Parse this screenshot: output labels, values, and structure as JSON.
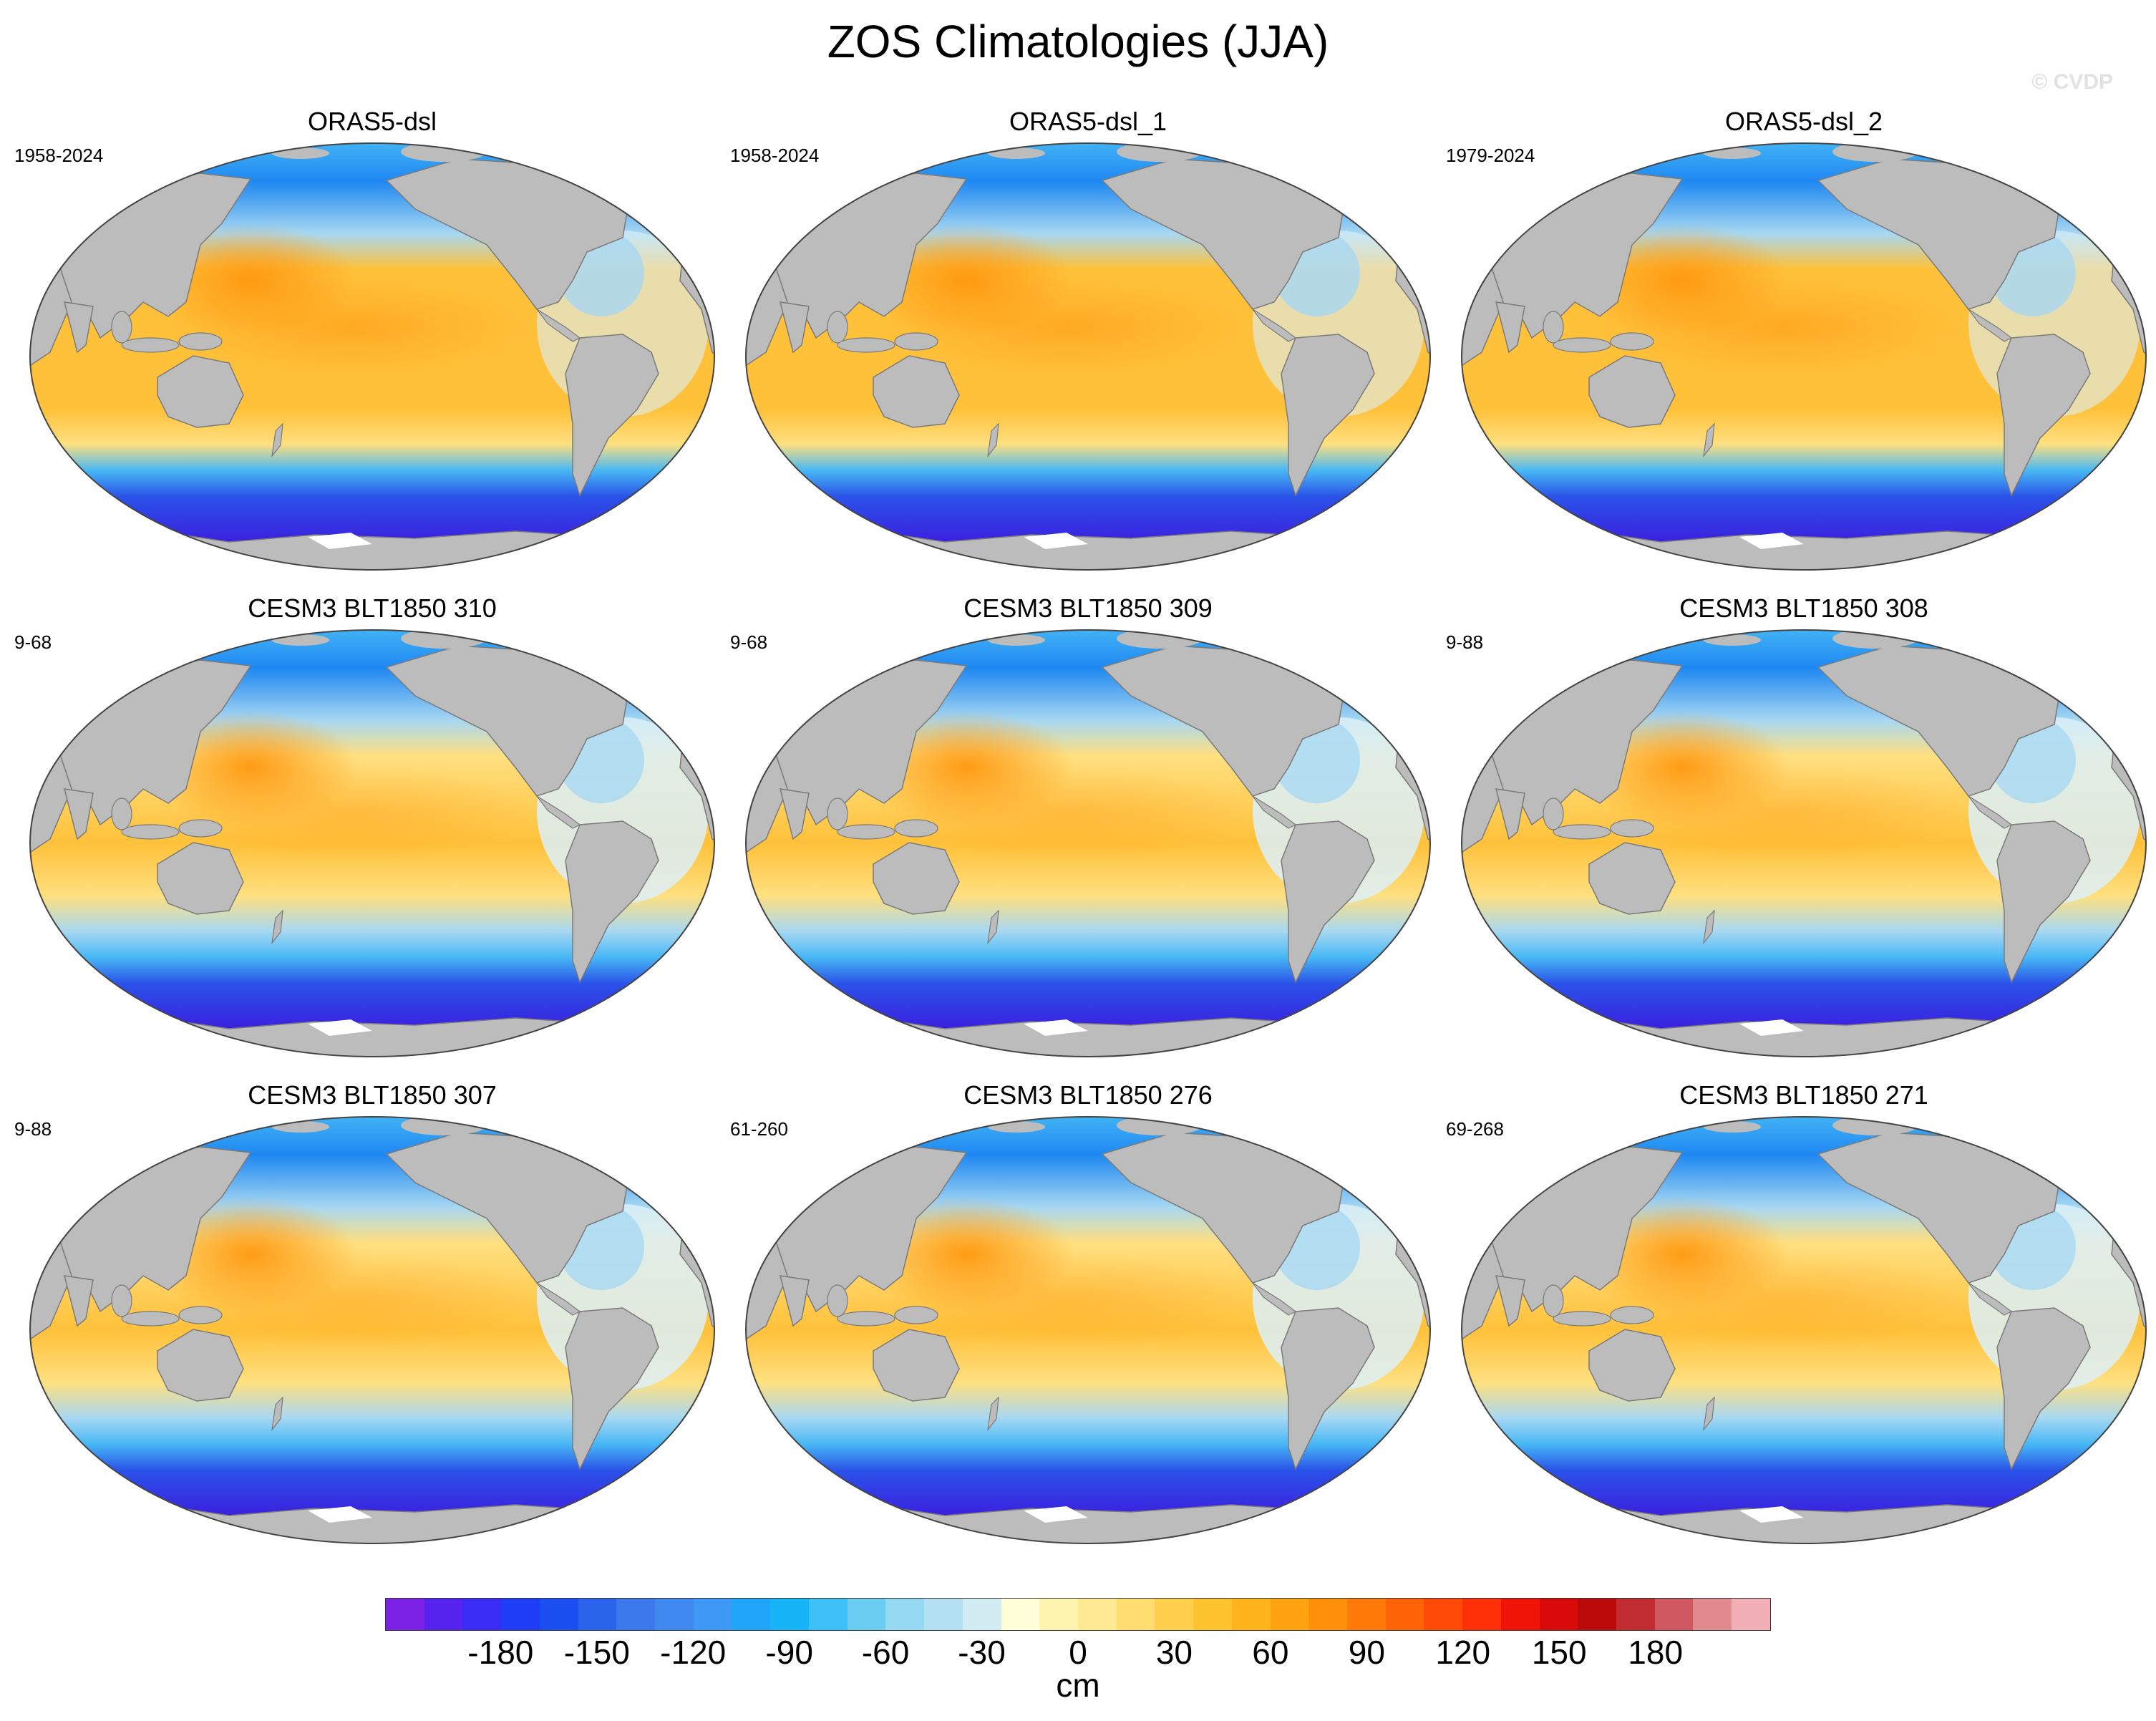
{
  "figure": {
    "title": "ZOS Climatologies (JJA)",
    "watermark": "© CVDP"
  },
  "panels": [
    {
      "title": "ORAS5-dsl",
      "years": "1958-2024"
    },
    {
      "title": "ORAS5-dsl_1",
      "years": "1958-2024"
    },
    {
      "title": "ORAS5-dsl_2",
      "years": "1979-2024"
    },
    {
      "title": "CESM3 BLT1850 310",
      "years": "9-68"
    },
    {
      "title": "CESM3 BLT1850 309",
      "years": "9-68"
    },
    {
      "title": "CESM3 BLT1850 308",
      "years": "9-88"
    },
    {
      "title": "CESM3 BLT1850 307",
      "years": "9-88"
    },
    {
      "title": "CESM3 BLT1850 276",
      "years": "61-260"
    },
    {
      "title": "CESM3 BLT1850 271",
      "years": "69-268"
    }
  ],
  "colorbar": {
    "units": "cm",
    "tick_labels": [
      "-180",
      "-150",
      "-120",
      "-90",
      "-60",
      "-30",
      "0",
      "30",
      "60",
      "90",
      "120",
      "150",
      "180"
    ],
    "colors": [
      "#7b22e6",
      "#5522ee",
      "#3a2cf5",
      "#1f3df5",
      "#1a4ef0",
      "#2a64ea",
      "#3a78ec",
      "#3f88f0",
      "#3e98f6",
      "#1fa6f8",
      "#18b4f8",
      "#3ec0f6",
      "#6ccdf3",
      "#94d8f1",
      "#b4e1f1",
      "#d2ecf3",
      "#ffffd8",
      "#fff4b0",
      "#ffe993",
      "#ffdd70",
      "#ffd04e",
      "#ffc330",
      "#ffb41c",
      "#ffa311",
      "#ff900a",
      "#ff7a08",
      "#ff6308",
      "#ff4a08",
      "#ff2f08",
      "#f01408",
      "#d80a0a",
      "#bb0a0a",
      "#c02c30",
      "#d05860",
      "#e08a90",
      "#f2b0b6"
    ]
  },
  "map_colors": {
    "land": "#bcbcbc",
    "warm_deep": "#ff9810",
    "warm": "#ffc13a",
    "warm_light": "#ffe080",
    "neutral_light": "#dcf0f8",
    "cool_light": "#a8d8f2",
    "cool": "#47b8f5",
    "cool_deep": "#1e88f2",
    "southern_ocean": "#2a52e8",
    "southern_deep": "#3a22e0",
    "ice": "#ffffff"
  }
}
